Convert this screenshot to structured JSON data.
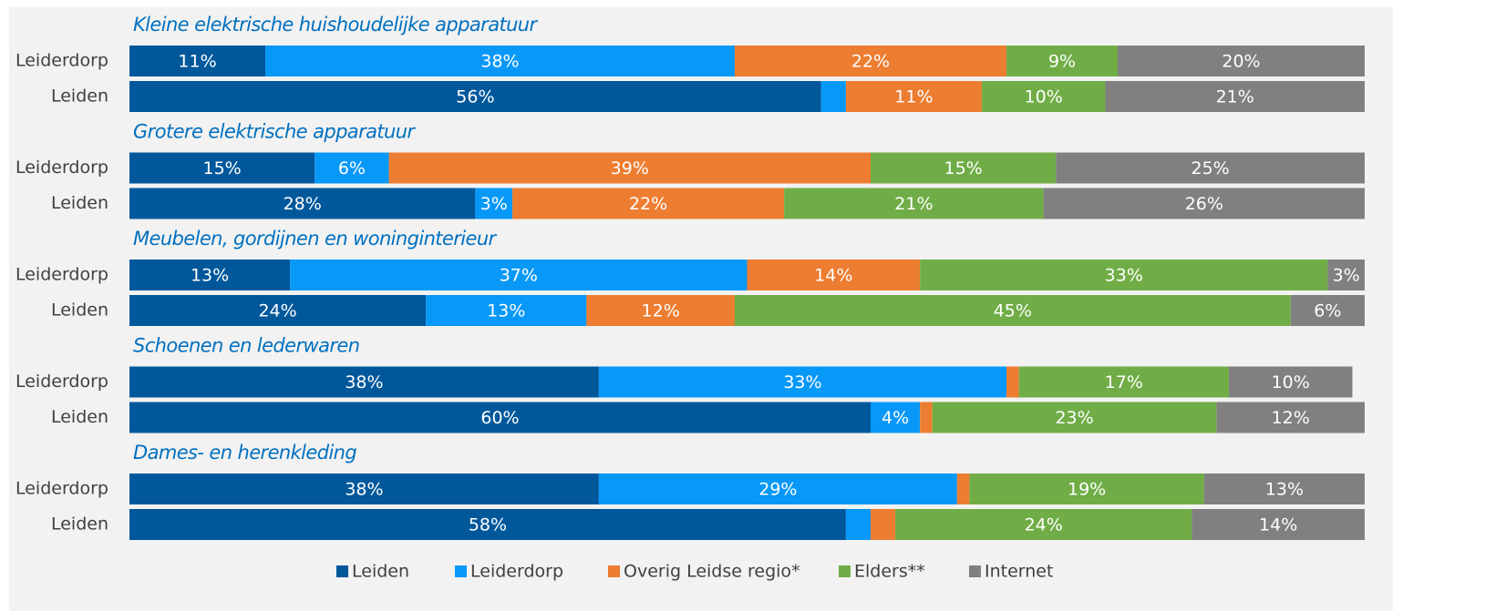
{
  "chart_data": {
    "type": "stacked-barh",
    "group_titles": [
      "Kleine elektrische huishoudelijke apparatuur",
      "Grotere elektrische apparatuur",
      "Meubelen, gordijnen en woninginterieur",
      "Schoenen en lederwaren",
      "Dames- en herenkleding"
    ],
    "categories": [
      "Leiderdorp",
      "Leiden",
      "Leiderdorp",
      "Leiden",
      "Leiderdorp",
      "Leiden",
      "Leiderdorp",
      "Leiden",
      "Leiderdorp",
      "Leiden"
    ],
    "xlim": [
      0,
      100
    ],
    "legend": "bottom",
    "series": [
      {
        "name": "Leiden",
        "color": "#00589b",
        "values": [
          11,
          56,
          15,
          28,
          13,
          24,
          38,
          60,
          38,
          58
        ],
        "value_labels": [
          "11%",
          "56%",
          "15%",
          "28%",
          "13%",
          "24%",
          "38%",
          "60%",
          "38%",
          "58%"
        ]
      },
      {
        "name": "Leiderdorp",
        "color": "#0898f8",
        "values": [
          38,
          2,
          6,
          3,
          37,
          13,
          33,
          4,
          29,
          2
        ],
        "value_labels": [
          "38%",
          null,
          "6%",
          "3%",
          "37%",
          "13%",
          "33%",
          "4%",
          "29%",
          null
        ]
      },
      {
        "name": "Overig Leidse regio*",
        "color": "#ed7d31",
        "values": [
          22,
          11,
          39,
          22,
          14,
          12,
          1,
          1,
          1,
          2
        ],
        "value_labels": [
          "22%",
          "11%",
          "39%",
          "22%",
          "14%",
          "12%",
          null,
          null,
          null,
          null
        ]
      },
      {
        "name": "Elders**",
        "color": "#70ad47",
        "values": [
          9,
          10,
          15,
          21,
          33,
          45,
          17,
          23,
          19,
          24
        ],
        "value_labels": [
          "9%",
          "10%",
          "15%",
          "21%",
          "33%",
          "45%",
          "17%",
          "23%",
          "19%",
          "24%"
        ]
      },
      {
        "name": "Internet",
        "color": "#808080",
        "values": [
          20,
          21,
          25,
          26,
          3,
          6,
          10,
          12,
          13,
          14
        ],
        "value_labels": [
          "20%",
          "21%",
          "25%",
          "26%",
          "3%",
          "6%",
          "10%",
          "12%",
          "13%",
          "14%"
        ]
      }
    ]
  }
}
